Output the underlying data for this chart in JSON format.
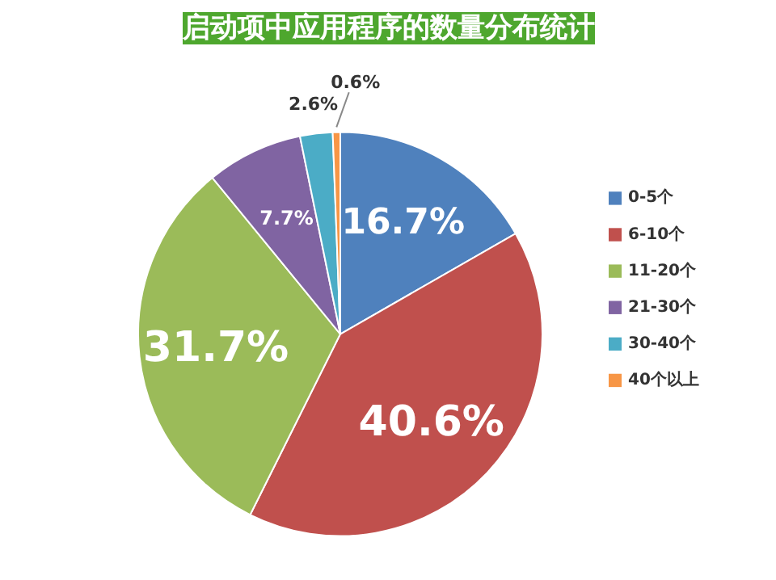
{
  "chart_data": {
    "type": "pie",
    "title": "启动项中应用程序的数量分布统计",
    "categories": [
      "0-5个",
      "6-10个",
      "11-20个",
      "21-30个",
      "30-40个",
      "40个以上"
    ],
    "values": [
      16.7,
      40.6,
      31.7,
      7.7,
      2.6,
      0.6
    ],
    "colors": [
      "#4f81bd",
      "#c0504d",
      "#9bbb59",
      "#8064a2",
      "#4bacc6",
      "#f79646"
    ],
    "value_labels": [
      "16.7%",
      "40.6%",
      "31.7%",
      "7.7%",
      "2.6%",
      "0.6%"
    ],
    "legend": "right"
  }
}
